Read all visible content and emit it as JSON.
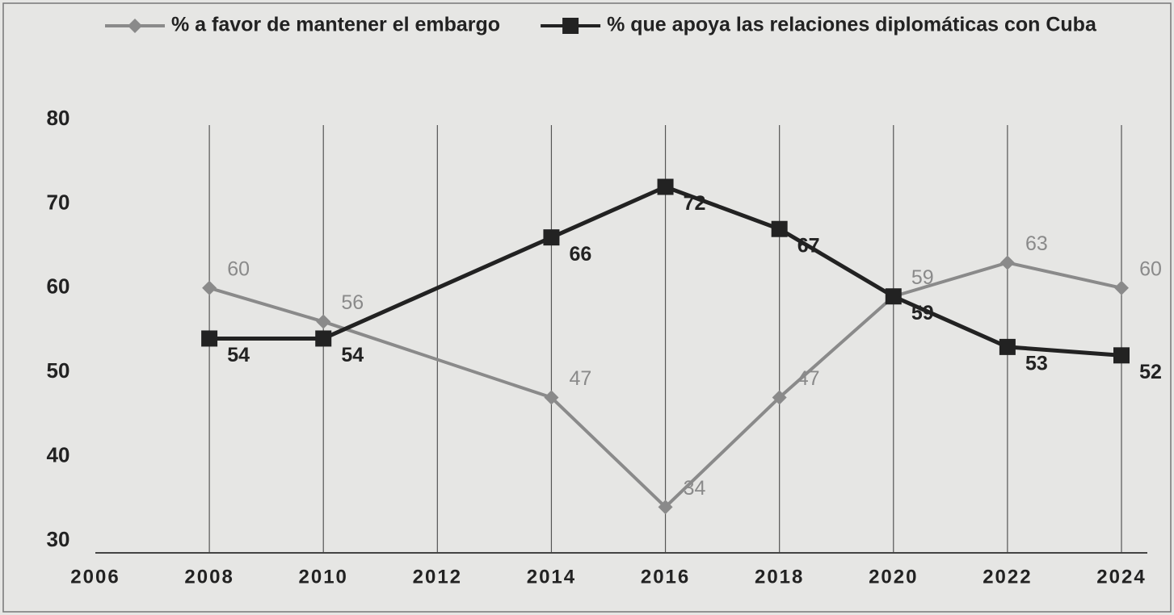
{
  "chart_data": {
    "type": "line",
    "x": [
      2008,
      2010,
      2014,
      2016,
      2018,
      2020,
      2022,
      2024
    ],
    "series": [
      {
        "name": "% a favor de mantener el embargo",
        "color": "#8a8a8a",
        "marker": "diamond",
        "values": [
          60,
          56,
          47,
          34,
          47,
          59,
          63,
          60
        ]
      },
      {
        "name": "% que apoya las relaciones diplomáticas con Cuba",
        "color": "#222222",
        "marker": "square",
        "values": [
          54,
          54,
          66,
          72,
          67,
          59,
          53,
          52
        ]
      }
    ],
    "xlim": [
      2006,
      2024
    ],
    "xticks": [
      2006,
      2008,
      2010,
      2012,
      2014,
      2016,
      2018,
      2020,
      2022,
      2024
    ],
    "ylim": [
      30,
      80
    ],
    "yticks": [
      30,
      40,
      50,
      60,
      70,
      80
    ],
    "grid": true,
    "legend": "top"
  }
}
